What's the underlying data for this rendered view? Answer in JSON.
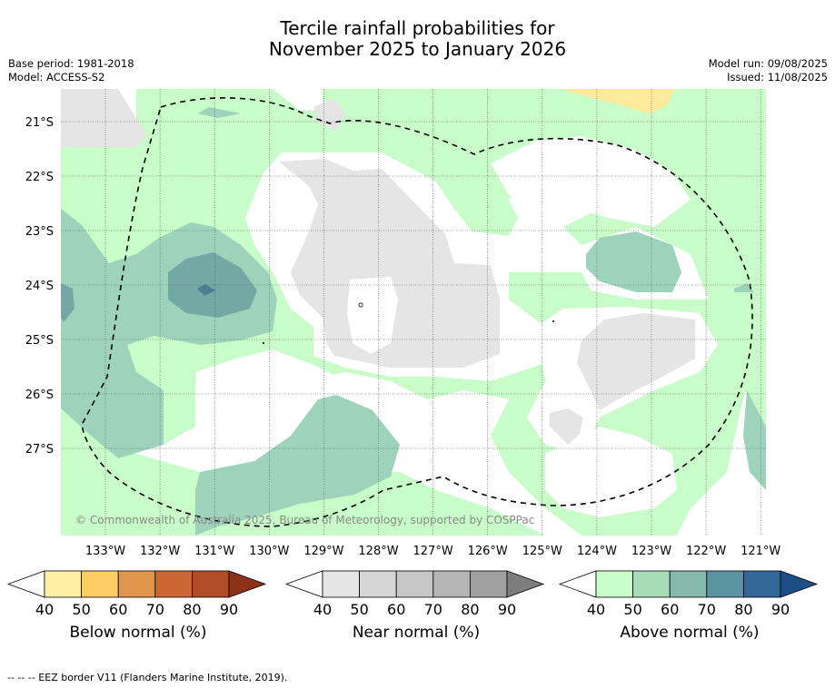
{
  "title": {
    "line1": "Tercile rainfall probabilities for",
    "line2": "November 2025 to January 2026"
  },
  "meta": {
    "base_period": "Base period: 1981-2018",
    "model": "Model: ACCESS-S2",
    "model_run": "Model run: 09/08/2025",
    "issued": "Issued: 11/08/2025"
  },
  "map": {
    "lat_labels": [
      "21°S",
      "22°S",
      "23°S",
      "24°S",
      "25°S",
      "26°S",
      "27°S"
    ],
    "lon_labels": [
      "133°W",
      "132°W",
      "131°W",
      "130°W",
      "129°W",
      "128°W",
      "127°W",
      "126°W",
      "125°W",
      "124°W",
      "123°W",
      "122°W",
      "121°W"
    ],
    "copyright": "© Commonwealth of Australia 2025, Bureau of Meteorology, supported by COSPPac",
    "colors": {
      "ocean_gap": "#ffffff",
      "near_40": "#e5e5e5",
      "above_40": "#c8fcc8",
      "above_50": "#9dd3bb",
      "above_60": "#74a8a5",
      "above_70": "#4d7e94",
      "below_40": "#ffe99b"
    }
  },
  "legends": [
    {
      "title": "Below normal (%)",
      "ticks": [
        "40",
        "50",
        "60",
        "70",
        "80",
        "90"
      ],
      "colors": [
        "#fff0a6",
        "#fdcd66",
        "#e2964b",
        "#cd6535",
        "#b14c28",
        "#8d3119"
      ]
    },
    {
      "title": "Near normal (%)",
      "ticks": [
        "40",
        "50",
        "60",
        "70",
        "80",
        "90"
      ],
      "colors": [
        "#e5e5e5",
        "#d5d5d5",
        "#c6c6c6",
        "#b4b4b4",
        "#a0a0a0",
        "#7d7d7d"
      ]
    },
    {
      "title": "Above normal (%)",
      "ticks": [
        "40",
        "50",
        "60",
        "70",
        "80",
        "90"
      ],
      "colors": [
        "#c8fcc8",
        "#a8dbb8",
        "#84b9ac",
        "#5a93a2",
        "#336699",
        "#1d4f87"
      ]
    }
  ],
  "footnote": "--  --  -- EEZ border V11 (Flanders Marine Institute, 2019)."
}
